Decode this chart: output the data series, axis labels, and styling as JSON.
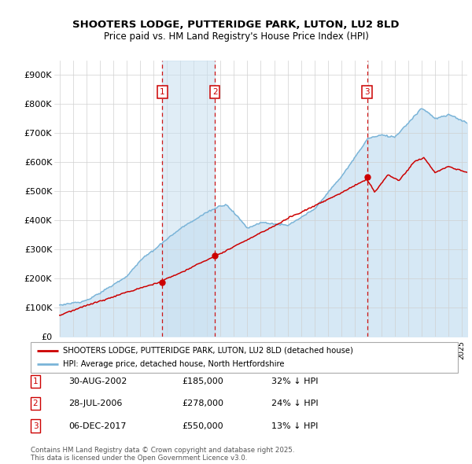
{
  "title_line1": "SHOOTERS LODGE, PUTTERIDGE PARK, LUTON, LU2 8LD",
  "title_line2": "Price paid vs. HM Land Registry's House Price Index (HPI)",
  "ylim": [
    0,
    950000
  ],
  "yticks": [
    0,
    100000,
    200000,
    300000,
    400000,
    500000,
    600000,
    700000,
    800000,
    900000
  ],
  "ytick_labels": [
    "£0",
    "£100K",
    "£200K",
    "£300K",
    "£400K",
    "£500K",
    "£600K",
    "£700K",
    "£800K",
    "£900K"
  ],
  "xlim_start": 1994.6,
  "xlim_end": 2025.4,
  "hpi_color": "#7ab4d8",
  "hpi_fill_color": "#d6e8f5",
  "hpi_fill_alpha": 1.0,
  "price_color": "#cc0000",
  "dashed_line_color": "#cc0000",
  "marker_box_color": "#cc0000",
  "sale_highlight_color": "#ddeeff",
  "plot_bg": "#ffffff",
  "grid_color": "#d0d0d0",
  "legend_label_price": "SHOOTERS LODGE, PUTTERIDGE PARK, LUTON, LU2 8LD (detached house)",
  "legend_label_hpi": "HPI: Average price, detached house, North Hertfordshire",
  "sale_dates": [
    2002.66,
    2006.58,
    2017.92
  ],
  "sale_prices": [
    185000,
    278000,
    550000
  ],
  "sale_labels": [
    "1",
    "2",
    "3"
  ],
  "table_rows": [
    [
      "1",
      "30-AUG-2002",
      "£185,000",
      "32% ↓ HPI"
    ],
    [
      "2",
      "28-JUL-2006",
      "£278,000",
      "24% ↓ HPI"
    ],
    [
      "3",
      "06-DEC-2017",
      "£550,000",
      "13% ↓ HPI"
    ]
  ],
  "footnote": "Contains HM Land Registry data © Crown copyright and database right 2025.\nThis data is licensed under the Open Government Licence v3.0."
}
